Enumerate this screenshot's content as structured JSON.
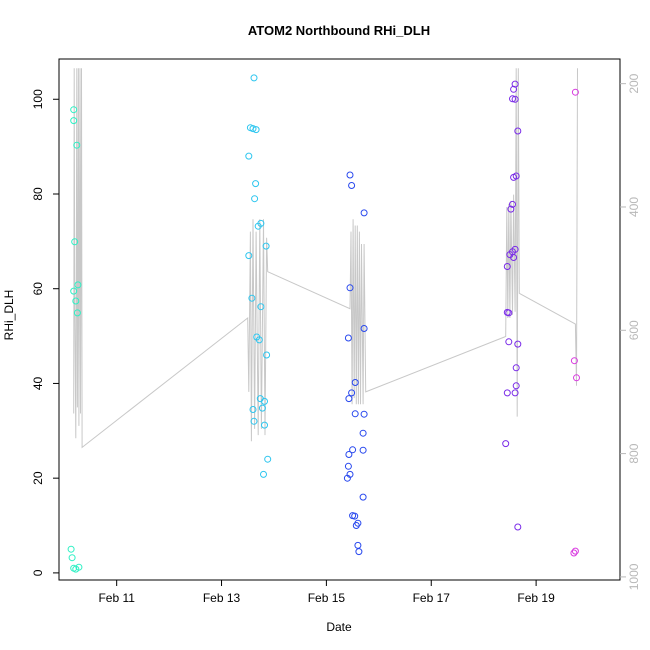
{
  "chart_data": {
    "type": "scatter",
    "title": "ATOM2 Northbound RHi_DLH",
    "xlabel": "Date",
    "ylabel": "RHi_DLH",
    "x_ticks": [
      {
        "x": 11,
        "label": "Feb 11"
      },
      {
        "x": 13,
        "label": "Feb 13"
      },
      {
        "x": 15,
        "label": "Feb 15"
      },
      {
        "x": 17,
        "label": "Feb 17"
      },
      {
        "x": 19,
        "label": "Feb 19"
      }
    ],
    "xlim": [
      9.9,
      20.6
    ],
    "ylim": [
      -1.5,
      108.5
    ],
    "y_ticks": [
      0,
      20,
      40,
      60,
      80,
      100
    ],
    "y2lim": [
      1005,
      160
    ],
    "y2_ticks": [
      200,
      400,
      600,
      800,
      1000
    ],
    "grid": false,
    "series": [
      {
        "color": "#2ef0c4",
        "points": [
          [
            10.18,
            97.8
          ],
          [
            10.18,
            95.5
          ],
          [
            10.24,
            90.3
          ],
          [
            10.2,
            69.9
          ],
          [
            10.18,
            59.5
          ],
          [
            10.26,
            60.8
          ],
          [
            10.22,
            57.4
          ],
          [
            10.25,
            54.9
          ],
          [
            10.13,
            5.0
          ],
          [
            10.15,
            3.2
          ],
          [
            10.18,
            1.0
          ],
          [
            10.22,
            0.8
          ],
          [
            10.28,
            1.2
          ]
        ]
      },
      {
        "color": "#2ec6ef",
        "points": [
          [
            13.62,
            104.5
          ],
          [
            13.55,
            94.0
          ],
          [
            13.6,
            93.8
          ],
          [
            13.66,
            93.6
          ],
          [
            13.52,
            88.0
          ],
          [
            13.65,
            82.2
          ],
          [
            13.63,
            79.0
          ],
          [
            13.75,
            73.8
          ],
          [
            13.7,
            73.2
          ],
          [
            13.52,
            67.0
          ],
          [
            13.85,
            69.0
          ],
          [
            13.58,
            58.0
          ],
          [
            13.75,
            56.2
          ],
          [
            13.67,
            49.8
          ],
          [
            13.72,
            49.2
          ],
          [
            13.86,
            46.0
          ],
          [
            13.74,
            36.8
          ],
          [
            13.82,
            36.2
          ],
          [
            13.78,
            34.8
          ],
          [
            13.6,
            34.5
          ],
          [
            13.62,
            32.0
          ],
          [
            13.82,
            31.2
          ],
          [
            13.88,
            24.0
          ],
          [
            13.8,
            20.8
          ]
        ]
      },
      {
        "color": "#2848ee",
        "points": [
          [
            15.45,
            84.0
          ],
          [
            15.48,
            81.8
          ],
          [
            15.72,
            76.0
          ],
          [
            15.45,
            60.2
          ],
          [
            15.72,
            51.6
          ],
          [
            15.42,
            49.6
          ],
          [
            15.55,
            40.2
          ],
          [
            15.48,
            38.0
          ],
          [
            15.43,
            36.8
          ],
          [
            15.55,
            33.6
          ],
          [
            15.72,
            33.5
          ],
          [
            15.7,
            29.5
          ],
          [
            15.5,
            26.0
          ],
          [
            15.7,
            25.9
          ],
          [
            15.43,
            25.0
          ],
          [
            15.42,
            22.5
          ],
          [
            15.45,
            20.8
          ],
          [
            15.4,
            20.0
          ],
          [
            15.7,
            16.0
          ],
          [
            15.5,
            12.1
          ],
          [
            15.54,
            12.0
          ],
          [
            15.6,
            10.5
          ],
          [
            15.57,
            10.0
          ],
          [
            15.6,
            5.8
          ],
          [
            15.62,
            4.5
          ]
        ]
      },
      {
        "color": "#7a2be8",
        "points": [
          [
            18.6,
            103.2
          ],
          [
            18.57,
            102.1
          ],
          [
            18.55,
            100.1
          ],
          [
            18.6,
            100.0
          ],
          [
            18.65,
            93.3
          ],
          [
            18.62,
            83.8
          ],
          [
            18.57,
            83.5
          ],
          [
            18.55,
            77.8
          ],
          [
            18.52,
            76.8
          ],
          [
            18.6,
            68.3
          ],
          [
            18.55,
            67.8
          ],
          [
            18.5,
            67.2
          ],
          [
            18.57,
            66.6
          ],
          [
            18.45,
            64.7
          ],
          [
            18.45,
            55.0
          ],
          [
            18.48,
            54.9
          ],
          [
            18.65,
            48.3
          ],
          [
            18.48,
            48.8
          ],
          [
            18.62,
            43.3
          ],
          [
            18.62,
            39.5
          ],
          [
            18.45,
            38.0
          ],
          [
            18.6,
            38.0
          ],
          [
            18.42,
            27.3
          ],
          [
            18.65,
            9.7
          ]
        ]
      },
      {
        "color": "#d93be0",
        "points": [
          [
            19.75,
            101.5
          ],
          [
            19.73,
            44.8
          ],
          [
            19.77,
            41.2
          ],
          [
            19.75,
            4.6
          ],
          [
            19.72,
            4.2
          ]
        ]
      }
    ],
    "line_series": {
      "axis": "right",
      "color": "#c8c8c8",
      "points": [
        [
          10.18,
          735
        ],
        [
          10.19,
          175
        ],
        [
          10.2,
          540
        ],
        [
          10.22,
          775
        ],
        [
          10.23,
          520
        ],
        [
          10.24,
          175
        ],
        [
          10.25,
          725
        ],
        [
          10.26,
          540
        ],
        [
          10.27,
          175
        ],
        [
          10.28,
          755
        ],
        [
          10.3,
          175
        ],
        [
          10.31,
          735
        ],
        [
          10.33,
          175
        ],
        [
          10.34,
          790
        ],
        [
          13.5,
          580
        ],
        [
          13.52,
          700
        ],
        [
          13.55,
          440
        ],
        [
          13.57,
          780
        ],
        [
          13.6,
          420
        ],
        [
          13.63,
          760
        ],
        [
          13.66,
          440
        ],
        [
          13.7,
          770
        ],
        [
          13.73,
          420
        ],
        [
          13.76,
          760
        ],
        [
          13.8,
          420
        ],
        [
          13.83,
          770
        ],
        [
          13.86,
          450
        ],
        [
          13.88,
          505
        ],
        [
          15.45,
          565
        ],
        [
          15.47,
          440
        ],
        [
          15.49,
          720
        ],
        [
          15.51,
          420
        ],
        [
          15.53,
          710
        ],
        [
          15.55,
          430
        ],
        [
          15.57,
          720
        ],
        [
          15.59,
          430
        ],
        [
          15.61,
          720
        ],
        [
          15.63,
          440
        ],
        [
          15.65,
          720
        ],
        [
          15.67,
          460
        ],
        [
          15.7,
          720
        ],
        [
          15.72,
          460
        ],
        [
          15.75,
          700
        ],
        [
          18.42,
          610
        ],
        [
          18.44,
          400
        ],
        [
          18.46,
          580
        ],
        [
          18.48,
          395
        ],
        [
          18.5,
          580
        ],
        [
          18.52,
          390
        ],
        [
          18.55,
          575
        ],
        [
          18.57,
          380
        ],
        [
          18.6,
          570
        ],
        [
          18.62,
          175
        ],
        [
          18.64,
          740
        ],
        [
          18.66,
          175
        ],
        [
          18.68,
          540
        ],
        [
          19.75,
          590
        ],
        [
          19.77,
          690
        ],
        [
          19.79,
          175
        ]
      ]
    }
  }
}
